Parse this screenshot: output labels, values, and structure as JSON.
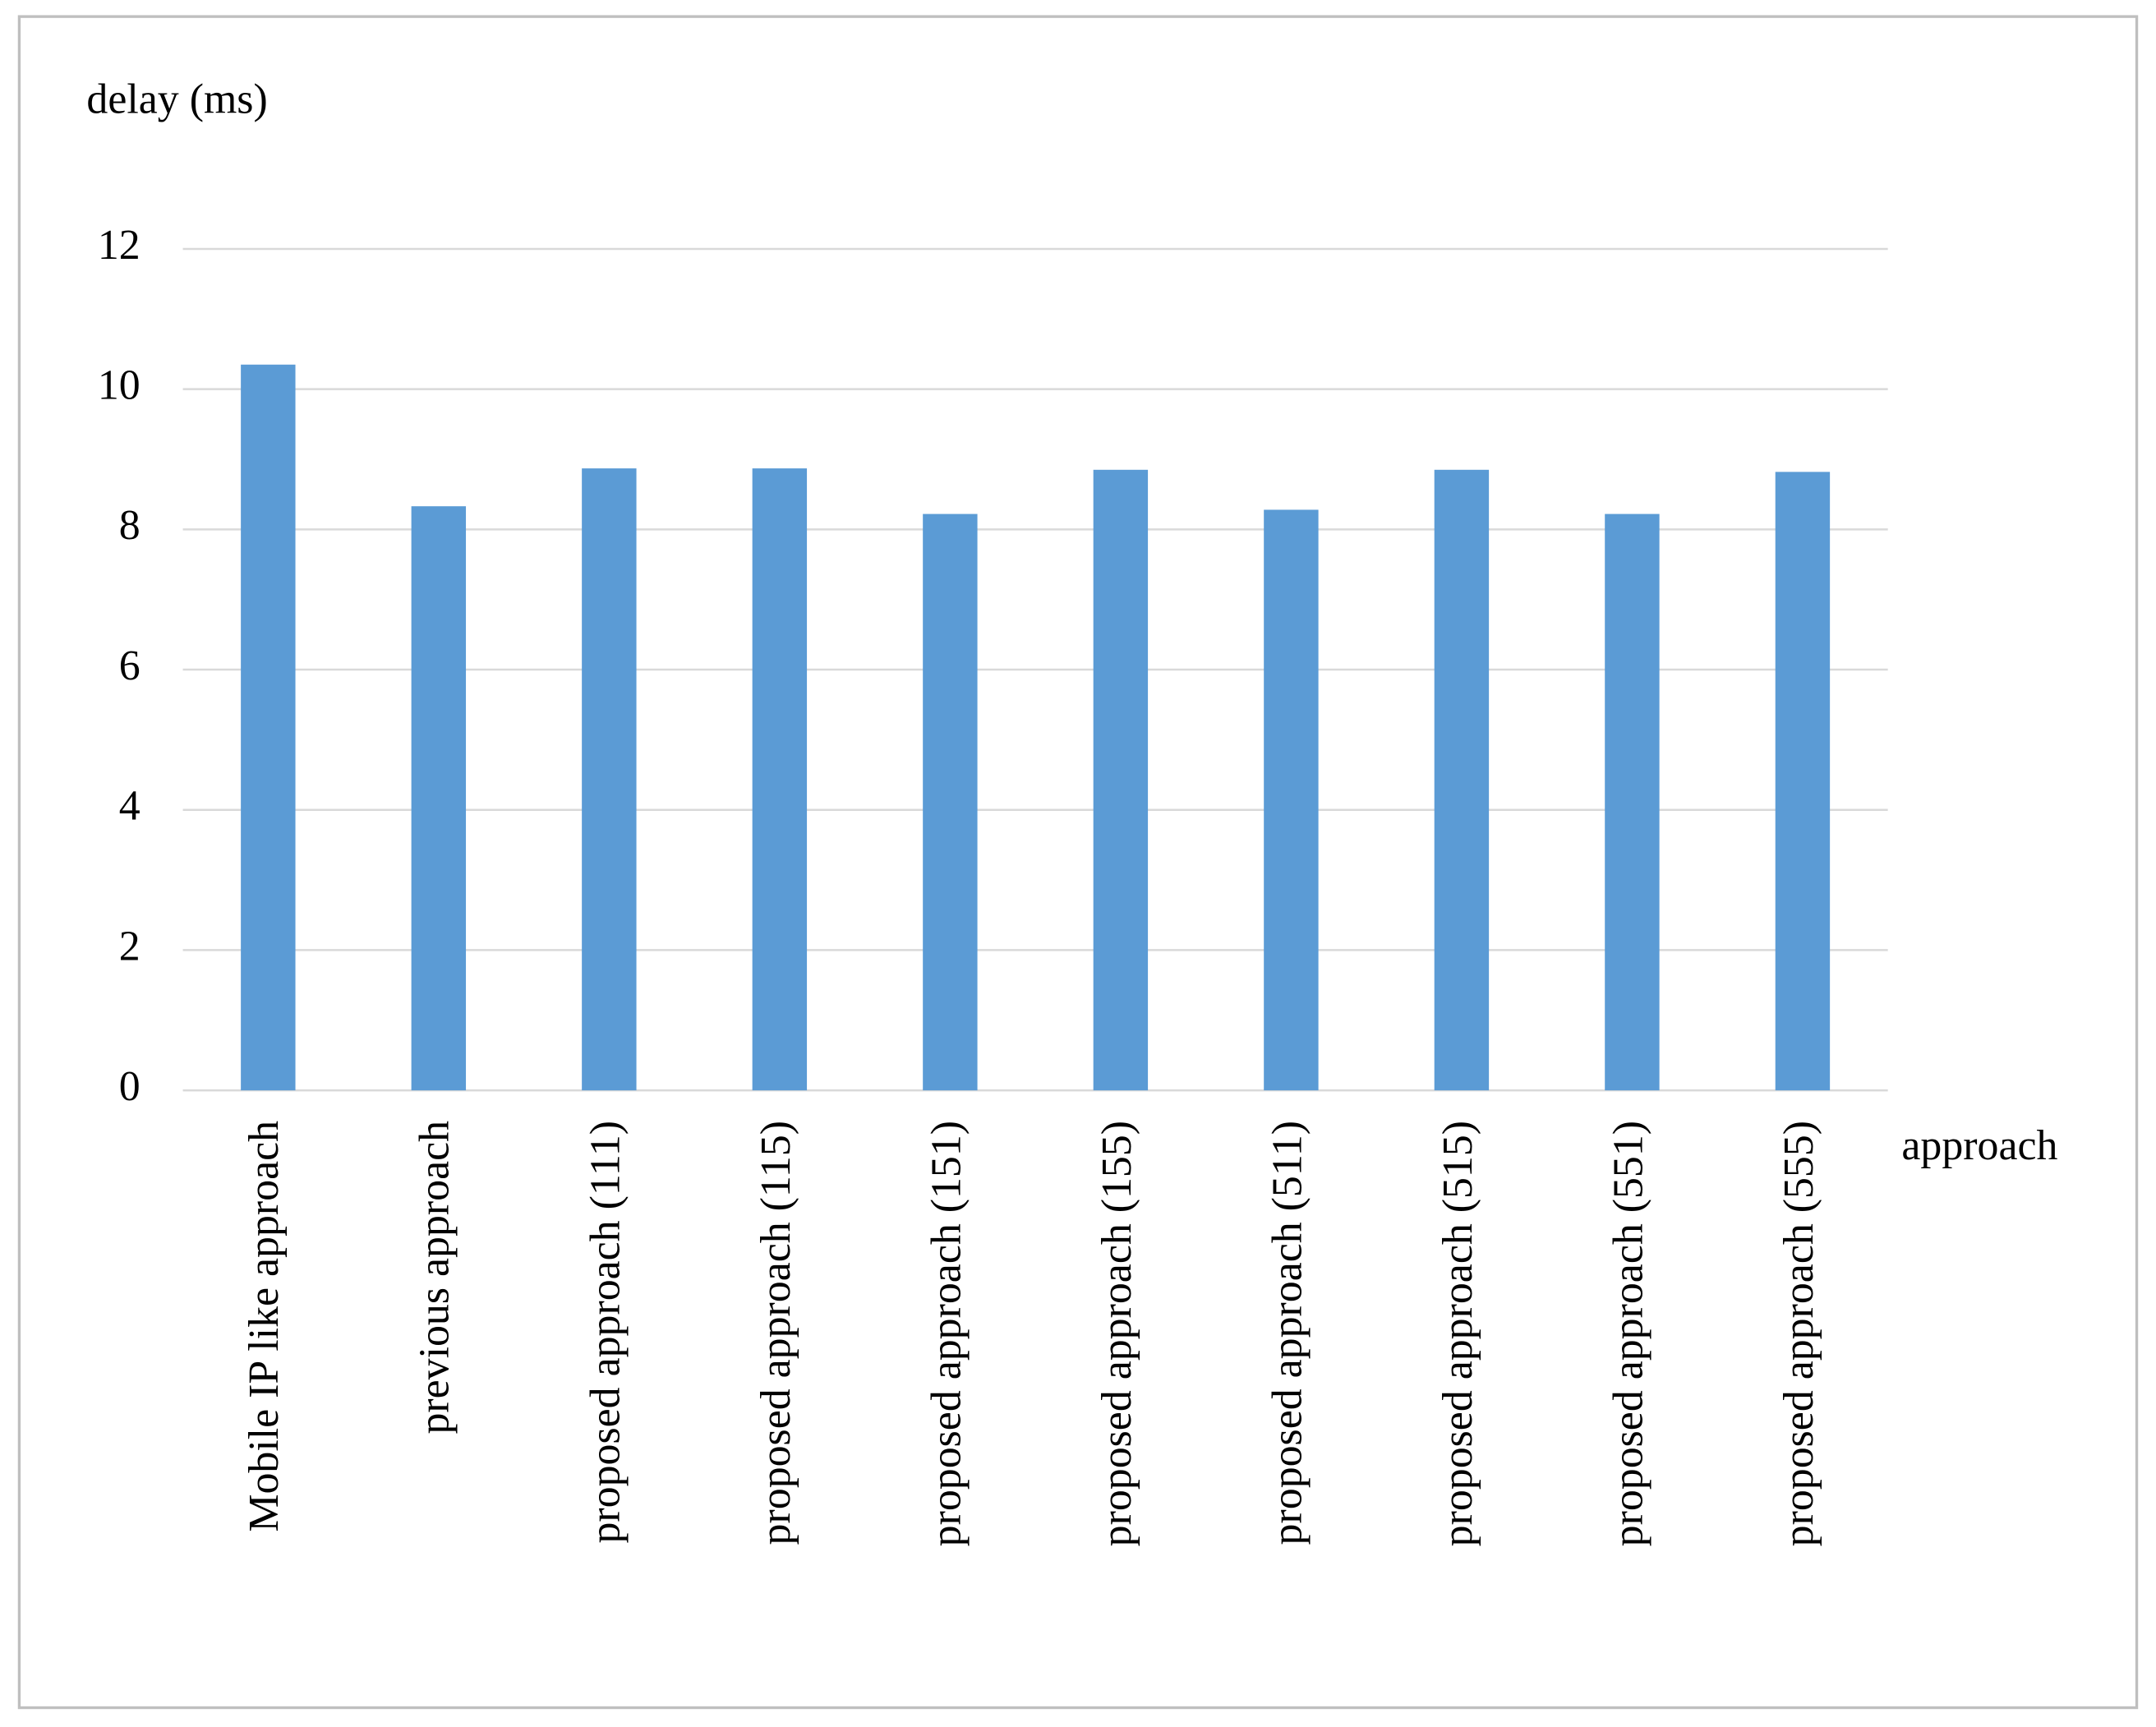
{
  "chart_data": {
    "type": "bar",
    "y_label": "delay (ms)",
    "x_label": "approach",
    "categories": [
      "Mobile IP like approach",
      "previous approach",
      "proposed approach (111)",
      "proposed approach (115)",
      "proposed approach (151)",
      "proposed approach (155)",
      "proposed approach (511)",
      "proposed approach (515)",
      "proposed approach (551)",
      "proposed approach (555)"
    ],
    "values": [
      10.35,
      8.33,
      8.87,
      8.87,
      8.22,
      8.85,
      8.28,
      8.85,
      8.22,
      8.82
    ],
    "color": "#5b9bd5",
    "ylim": [
      0,
      12
    ],
    "yticks": [
      0,
      2,
      4,
      6,
      8,
      10,
      12
    ],
    "grid": true
  }
}
